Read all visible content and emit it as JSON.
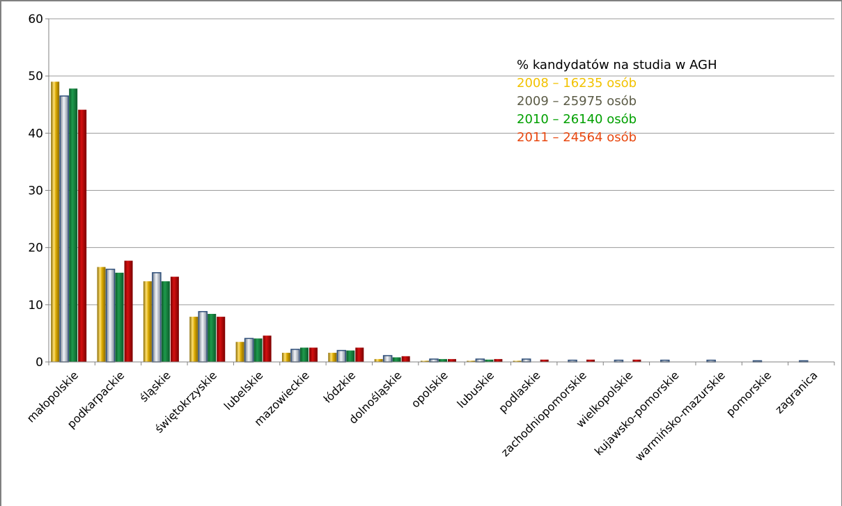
{
  "chart_data": {
    "type": "bar",
    "title": "",
    "xlabel": "",
    "ylabel": "",
    "ylim": [
      0,
      60
    ],
    "yticks": [
      "0",
      "10",
      "20",
      "30",
      "40",
      "50",
      "60"
    ],
    "grid": true,
    "legend_placement": "top-right",
    "legend_title": "% kandydatów na studia w AGH",
    "categories": [
      "małopolskie",
      "podkarpackie",
      "śląskie",
      "świętokrzyskie",
      "lubelskie",
      "mazowieckie",
      "łódzkie",
      "dolnośląskie",
      "opolskie",
      "lubuskie",
      "podlaskie",
      "zachodniopomorskie",
      "wielkopolskie",
      "kujawsko-pomorskie",
      "warmińsko-mazurskie",
      "pomorskie",
      "zagranica"
    ],
    "series": [
      {
        "name": "2008 – 16235 osób",
        "color": "#F2C200",
        "values": [
          49.0,
          16.6,
          14.1,
          7.9,
          3.5,
          1.6,
          1.6,
          0.5,
          0.2,
          0.2,
          0.2,
          0.0,
          0.0,
          0.0,
          0.0,
          0.0,
          0.0
        ]
      },
      {
        "name": "2009 – 25975 osób",
        "color": "#5B5B46",
        "values": [
          46.5,
          16.2,
          15.6,
          8.8,
          4.1,
          2.2,
          2.0,
          1.1,
          0.5,
          0.5,
          0.5,
          0.3,
          0.3,
          0.3,
          0.3,
          0.2,
          0.2
        ]
      },
      {
        "name": "2010 – 26140 osób",
        "color": "#00A000",
        "values": [
          47.8,
          15.6,
          14.1,
          8.4,
          4.1,
          2.5,
          2.0,
          0.8,
          0.5,
          0.4,
          0.0,
          0.0,
          0.0,
          0.0,
          0.0,
          0.0,
          0.0
        ]
      },
      {
        "name": "2011 – 24564 osób",
        "color": "#E84810",
        "values": [
          44.1,
          17.7,
          14.9,
          7.9,
          4.6,
          2.5,
          2.5,
          1.0,
          0.5,
          0.5,
          0.4,
          0.4,
          0.4,
          0.0,
          0.0,
          0.0,
          0.0
        ]
      }
    ]
  }
}
